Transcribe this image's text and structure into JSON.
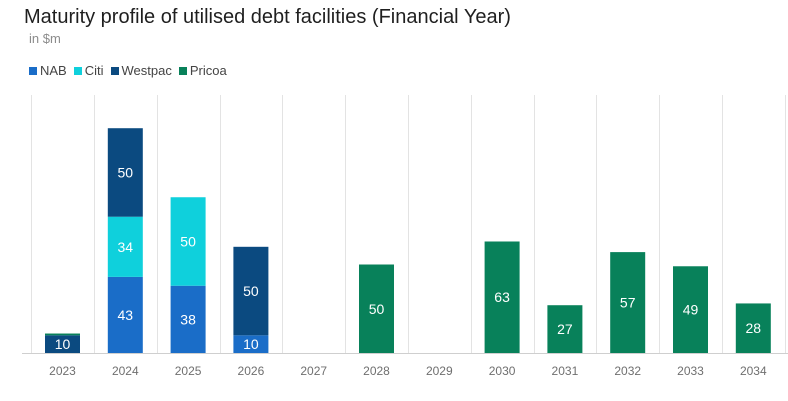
{
  "chart_data": {
    "type": "bar",
    "stacked": true,
    "title": "Maturity profile of utilised debt facilities (Financial Year)",
    "subtitle": "in $m",
    "xlabel": "",
    "ylabel": "",
    "ylim": [
      0,
      140
    ],
    "legend_position": "top-left",
    "categories": [
      "2023",
      "2024",
      "2025",
      "2026",
      "2027",
      "2028",
      "2029",
      "2030",
      "2031",
      "2032",
      "2033",
      "2034"
    ],
    "series": [
      {
        "name": "NAB",
        "color": "#1a6dc8",
        "values": [
          0,
          43,
          38,
          10,
          0,
          0,
          0,
          0,
          0,
          0,
          0,
          0
        ]
      },
      {
        "name": "Citi",
        "color": "#0fd0dc",
        "values": [
          0,
          34,
          50,
          0,
          0,
          0,
          0,
          0,
          0,
          0,
          0,
          0
        ]
      },
      {
        "name": "Westpac",
        "color": "#0b4a80",
        "values": [
          10,
          50,
          0,
          50,
          0,
          0,
          0,
          0,
          0,
          0,
          0,
          0
        ]
      },
      {
        "name": "Pricoa",
        "color": "#08815a",
        "values": [
          1,
          0,
          0,
          0,
          0,
          50,
          0,
          63,
          27,
          57,
          49,
          28
        ]
      }
    ],
    "labels": [
      {
        "category": "2023",
        "series": "Westpac",
        "text": "10"
      },
      {
        "category": "2024",
        "series": "NAB",
        "text": "43"
      },
      {
        "category": "2024",
        "series": "Citi",
        "text": "34"
      },
      {
        "category": "2024",
        "series": "Westpac",
        "text": "50"
      },
      {
        "category": "2025",
        "series": "NAB",
        "text": "38"
      },
      {
        "category": "2025",
        "series": "Citi",
        "text": "50"
      },
      {
        "category": "2026",
        "series": "NAB",
        "text": "10"
      },
      {
        "category": "2026",
        "series": "Westpac",
        "text": "50"
      },
      {
        "category": "2028",
        "series": "Pricoa",
        "text": "50"
      },
      {
        "category": "2030",
        "series": "Pricoa",
        "text": "63"
      },
      {
        "category": "2031",
        "series": "Pricoa",
        "text": "27"
      },
      {
        "category": "2032",
        "series": "Pricoa",
        "text": "57"
      },
      {
        "category": "2033",
        "series": "Pricoa",
        "text": "49"
      },
      {
        "category": "2034",
        "series": "Pricoa",
        "text": "28"
      }
    ]
  },
  "colors": {
    "gridline": "#e3e3e3",
    "baseline": "#cfcfcf"
  }
}
